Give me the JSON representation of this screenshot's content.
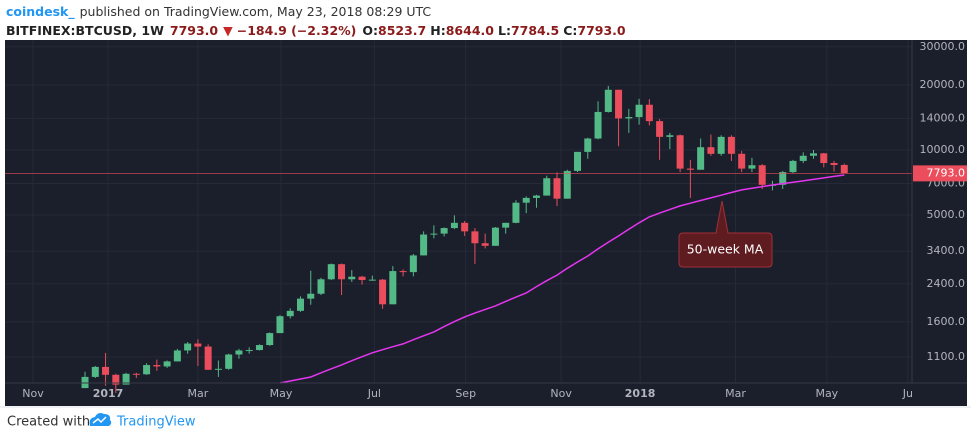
{
  "header": {
    "publisher": "coindesk_",
    "published": "published on TradingView.com, May 23, 2018 08:29 UTC",
    "symbol": "BITFINEX:BTCUSD, 1W",
    "last": "7793.0",
    "change": "−184.9 (−2.32%)",
    "ohlc": [
      {
        "label": "O:",
        "value": "8523.7"
      },
      {
        "label": "H:",
        "value": "8644.0"
      },
      {
        "label": "L:",
        "value": "7784.5"
      },
      {
        "label": "C:",
        "value": "7793.0"
      }
    ]
  },
  "chart_data": {
    "type": "candlestick",
    "log_scale": true,
    "grid": true,
    "up_color": "#53b987",
    "down_color": "#eb4d5c",
    "x": [
      0,
      1,
      2,
      3,
      4,
      5,
      6,
      7,
      8,
      9,
      10,
      11,
      12,
      13,
      14,
      15,
      16,
      17,
      18,
      19,
      20,
      21,
      22,
      23,
      24,
      25,
      26,
      27,
      28,
      29,
      30,
      31,
      32,
      33,
      34,
      35,
      36,
      37,
      38,
      39,
      40,
      41,
      42,
      43,
      44,
      45,
      46,
      47,
      48,
      49,
      50,
      51,
      52,
      53,
      54,
      55,
      56,
      57,
      58,
      59,
      60,
      61,
      62,
      63,
      64,
      65,
      66,
      67,
      68,
      69,
      70,
      71,
      72,
      73,
      74
    ],
    "open": [
      790,
      890,
      990,
      910,
      820,
      920,
      915,
      1010,
      995,
      1050,
      1180,
      1270,
      1230,
      960,
      970,
      1130,
      1180,
      1185,
      1250,
      1420,
      1700,
      1800,
      2050,
      2160,
      2520,
      2960,
      2520,
      2590,
      2500,
      2510,
      1930,
      2750,
      2720,
      3250,
      4060,
      4100,
      4350,
      4600,
      4200,
      3700,
      3600,
      4370,
      4600,
      5700,
      6000,
      6150,
      7400,
      5950,
      8000,
      9800,
      11300,
      15000,
      19000,
      14000,
      14200,
      16200,
      13600,
      11500,
      11700,
      8200,
      8100,
      10300,
      9600,
      11500,
      9600,
      8200,
      8500,
      6900,
      6900,
      7900,
      8900,
      9400,
      9650,
      8700,
      8523.7
    ],
    "high": [
      940,
      1000,
      1150,
      920,
      930,
      930,
      1030,
      1070,
      1060,
      1200,
      1290,
      1330,
      1260,
      1060,
      1140,
      1200,
      1220,
      1260,
      1430,
      1720,
      1850,
      2100,
      2760,
      2560,
      2980,
      2980,
      2780,
      2610,
      2620,
      2530,
      2900,
      2800,
      3300,
      4200,
      4480,
      4380,
      4980,
      4690,
      4350,
      4100,
      4400,
      4600,
      5850,
      6100,
      6200,
      7600,
      7880,
      8100,
      9800,
      11400,
      16800,
      19800,
      19000,
      15500,
      17250,
      17200,
      13900,
      12000,
      11800,
      9000,
      11300,
      11800,
      11700,
      11700,
      9900,
      9200,
      8600,
      7200,
      8000,
      9000,
      9750,
      10000,
      9700,
      8900,
      8644
    ],
    "low": [
      790,
      880,
      810,
      750,
      820,
      880,
      910,
      950,
      980,
      1050,
      1140,
      1000,
      960,
      890,
      960,
      1080,
      1140,
      1180,
      1240,
      1420,
      1660,
      1780,
      1920,
      2130,
      2500,
      2130,
      2450,
      2380,
      2480,
      1840,
      1930,
      2600,
      2600,
      3250,
      3900,
      3980,
      4300,
      4000,
      2970,
      3500,
      3600,
      4100,
      4580,
      5100,
      5400,
      6150,
      5500,
      5950,
      7900,
      9100,
      11200,
      14900,
      10400,
      12000,
      13100,
      13000,
      9000,
      10100,
      7900,
      6000,
      8100,
      9400,
      9400,
      8900,
      7900,
      7900,
      6600,
      6500,
      6600,
      7800,
      8700,
      9100,
      8300,
      7950,
      7784.5
    ],
    "close": [
      890,
      990,
      910,
      820,
      920,
      915,
      1010,
      995,
      1050,
      1180,
      1270,
      1230,
      960,
      970,
      1130,
      1180,
      1185,
      1250,
      1420,
      1700,
      1800,
      2050,
      2160,
      2520,
      2960,
      2520,
      2590,
      2500,
      2510,
      1930,
      2750,
      2720,
      3250,
      4060,
      4100,
      4350,
      4600,
      4200,
      3700,
      3600,
      4370,
      4600,
      5700,
      6000,
      6150,
      7400,
      5950,
      8000,
      9800,
      11300,
      15000,
      19000,
      14000,
      14200,
      16200,
      13600,
      11500,
      11700,
      8200,
      8100,
      10300,
      9600,
      11500,
      9600,
      8200,
      8500,
      6900,
      6900,
      7900,
      8900,
      9400,
      9650,
      8700,
      8520,
      7793
    ],
    "moving_average": {
      "color": "#e535f0",
      "values": [
        null,
        null,
        null,
        null,
        null,
        null,
        null,
        null,
        null,
        null,
        null,
        null,
        null,
        null,
        null,
        null,
        null,
        null,
        null,
        834,
        852,
        870,
        889,
        930,
        970,
        1012,
        1058,
        1104,
        1151,
        1190,
        1228,
        1265,
        1323,
        1380,
        1438,
        1521,
        1605,
        1688,
        1758,
        1828,
        1897,
        1991,
        2084,
        2178,
        2331,
        2483,
        2636,
        2833,
        3031,
        3228,
        3485,
        3743,
        4000,
        4299,
        4599,
        4898,
        5101,
        5305,
        5508,
        5672,
        5836,
        6000,
        6177,
        6354,
        6531,
        6650,
        6768,
        6887,
        6989,
        7092,
        7194,
        7311,
        7428,
        7544,
        7660
      ]
    },
    "last_price": {
      "value": 7793,
      "label": "7793.0"
    },
    "xlim": [
      -7.8,
      80.6
    ],
    "xticks": [
      {
        "value": -5.07,
        "label": "Nov"
      },
      {
        "value": 2.24,
        "label": "2017"
      },
      {
        "value": 11.0,
        "label": "Mar"
      },
      {
        "value": 19.1,
        "label": "May"
      },
      {
        "value": 28.2,
        "label": "Jul"
      },
      {
        "value": 37.1,
        "label": "Sep"
      },
      {
        "value": 46.4,
        "label": "Nov"
      },
      {
        "value": 54.1,
        "label": "2018"
      },
      {
        "value": 63.4,
        "label": "Mar"
      },
      {
        "value": 72.3,
        "label": "May"
      },
      {
        "value": 80.2,
        "label": "Ju"
      }
    ],
    "ylim": [
      834,
      32300
    ],
    "yticks": [
      {
        "value": 30000,
        "label": "30000.0"
      },
      {
        "value": 20000,
        "label": "20000.0"
      },
      {
        "value": 14000,
        "label": "14000.0"
      },
      {
        "value": 10000,
        "label": "10000.0"
      },
      {
        "value": 7000,
        "label": "7000.0"
      },
      {
        "value": 5000,
        "label": "5000.0"
      },
      {
        "value": 3400,
        "label": "3400.0"
      },
      {
        "value": 2400,
        "label": "2400.0"
      },
      {
        "value": 1600,
        "label": "1600.0"
      },
      {
        "value": 1100,
        "label": "1100.0"
      }
    ],
    "annotations": [
      {
        "text": "50-week MA"
      }
    ]
  },
  "footer": {
    "text": "Created with",
    "brand": "TradingView"
  }
}
